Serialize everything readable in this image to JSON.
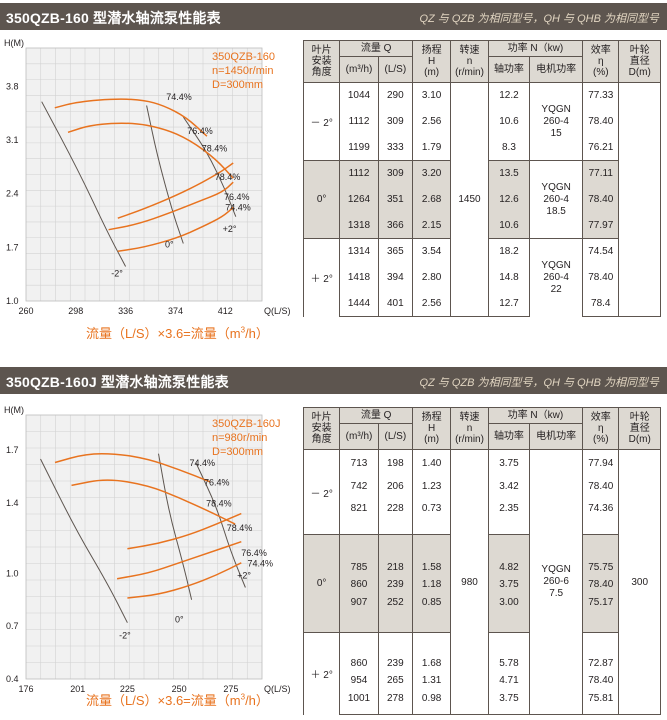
{
  "chart_data": [
    {
      "type": "line",
      "model": "350QZB-160",
      "speed": "n=1450r/min",
      "diameter": "D=300mm",
      "ylabel": "H(M)",
      "xlabel": "Q(L/S)",
      "x_ticks": [
        260,
        298,
        336,
        374,
        412
      ],
      "y_ticks": [
        "1.0",
        "1.7",
        "2.4",
        "3.1",
        "3.8"
      ],
      "xlim": [
        260,
        440
      ],
      "ylim": [
        1.0,
        4.3
      ],
      "x_formula": "流量（L/S）×3.6=流量（m",
      "x_formula_unit_end": "/h）",
      "series": [
        {
          "x": [
            282,
            300,
            330,
            350,
            365,
            382,
            398
          ],
          "y": [
            3.52,
            3.6,
            3.64,
            3.62,
            3.55,
            3.4,
            3.15
          ]
        },
        {
          "x": [
            292,
            310,
            340,
            365,
            385,
            405,
            418
          ],
          "y": [
            3.2,
            3.3,
            3.33,
            3.25,
            3.1,
            2.85,
            2.6
          ]
        },
        {
          "x": [
            330,
            350,
            375,
            395,
            410,
            418
          ],
          "y": [
            2.08,
            2.2,
            2.38,
            2.55,
            2.7,
            2.8
          ]
        },
        {
          "x": [
            323,
            345,
            370,
            392,
            410,
            418
          ],
          "y": [
            1.93,
            2.0,
            2.15,
            2.3,
            2.42,
            2.55
          ]
        },
        {
          "x": [
            330,
            350,
            375,
            395,
            410,
            418
          ],
          "y": [
            1.65,
            1.7,
            1.82,
            1.97,
            2.1,
            2.22
          ]
        }
      ],
      "efficiency_lines": [
        {
          "x": [
            272,
            300,
            322,
            336
          ],
          "y": [
            3.6,
            2.7,
            1.9,
            1.45
          ]
        },
        {
          "x": [
            352,
            360,
            372,
            380
          ],
          "y": [
            3.55,
            2.9,
            2.15,
            1.75
          ]
        },
        {
          "x": [
            380,
            398,
            412,
            420
          ],
          "y": [
            3.4,
            2.95,
            2.45,
            2.1
          ]
        }
      ],
      "labels": [
        {
          "text": "74.4%",
          "x": 367,
          "y": 3.62
        },
        {
          "text": "76.4%",
          "x": 383,
          "y": 3.18
        },
        {
          "text": "78.4%",
          "x": 394,
          "y": 2.95
        },
        {
          "text": "78.4%",
          "x": 404,
          "y": 2.58
        },
        {
          "text": "76.4%",
          "x": 411,
          "y": 2.32
        },
        {
          "text": "74.4%",
          "x": 412,
          "y": 2.18
        },
        {
          "text": "+2°",
          "x": 410,
          "y": 1.9
        },
        {
          "text": "-2°",
          "x": 325,
          "y": 1.32
        },
        {
          "text": "0°",
          "x": 366,
          "y": 1.7
        }
      ]
    },
    {
      "type": "line",
      "model": "350QZB-160J",
      "speed": "n=980r/min",
      "diameter": "D=300mm",
      "ylabel": "H(M)",
      "xlabel": "Q(L/S)",
      "x_ticks": [
        176,
        201,
        225,
        250,
        275
      ],
      "y_ticks": [
        "0.4",
        "0.7",
        "1.0",
        "1.4",
        "1.7"
      ],
      "xlim": [
        176,
        290
      ],
      "ylim": [
        0.4,
        1.9
      ],
      "x_formula": "流量（L/S）×3.6=流量（m",
      "x_formula_unit_end": "/h）",
      "series": [
        {
          "x": [
            190,
            205,
            220,
            235,
            250,
            265
          ],
          "y": [
            1.63,
            1.68,
            1.68,
            1.65,
            1.59,
            1.52
          ]
        },
        {
          "x": [
            198,
            215,
            235,
            250,
            265,
            277
          ],
          "y": [
            1.5,
            1.54,
            1.5,
            1.43,
            1.35,
            1.28
          ]
        },
        {
          "x": [
            225,
            240,
            255,
            268,
            280
          ],
          "y": [
            1.14,
            1.17,
            1.22,
            1.28,
            1.34
          ]
        },
        {
          "x": [
            220,
            235,
            250,
            265,
            280
          ],
          "y": [
            0.97,
            1.0,
            1.06,
            1.12,
            1.18
          ]
        },
        {
          "x": [
            225,
            240,
            255,
            268,
            280
          ],
          "y": [
            0.86,
            0.88,
            0.93,
            0.99,
            1.06
          ]
        }
      ],
      "efficiency_lines": [
        {
          "x": [
            183,
            200,
            215,
            225
          ],
          "y": [
            1.65,
            1.25,
            0.95,
            0.72
          ]
        },
        {
          "x": [
            240,
            245,
            252,
            256
          ],
          "y": [
            1.68,
            1.35,
            1.05,
            0.85
          ]
        },
        {
          "x": [
            258,
            268,
            275,
            282
          ],
          "y": [
            1.63,
            1.38,
            1.12,
            0.92
          ]
        }
      ],
      "labels": [
        {
          "text": "74.4%",
          "x": 255,
          "y": 1.61
        },
        {
          "text": "76.4%",
          "x": 262,
          "y": 1.5
        },
        {
          "text": "78.4%",
          "x": 263,
          "y": 1.38
        },
        {
          "text": "78.4%",
          "x": 273,
          "y": 1.24
        },
        {
          "text": "76.4%",
          "x": 280,
          "y": 1.1
        },
        {
          "text": "74.4%",
          "x": 283,
          "y": 1.04
        },
        {
          "text": "+2°",
          "x": 278,
          "y": 0.97
        },
        {
          "text": "-2°",
          "x": 221,
          "y": 0.63
        },
        {
          "text": "0°",
          "x": 248,
          "y": 0.72
        }
      ]
    }
  ],
  "sections": [
    {
      "title": "350QZB-160 型潜水轴流泵性能表",
      "note": "QZ 与 QZB 为相同型号，QH 与 QHB 为相同型号",
      "table": {
        "headers": {
          "blade": "叶片\n安装\n角度",
          "flow": "流量 Q",
          "flow_m3h": "(m³/h)",
          "flow_ls": "(L/S)",
          "head": "扬程\nH\n(m)",
          "speed": "转速\nn\n(r/min)",
          "power": "功率 N（kw)",
          "shaft_power": "轴功率",
          "motor_power": "电机功率",
          "efficiency": "效率\nη\n(%)",
          "impeller": "叶轮\n直径\nD(m)"
        },
        "speed_value": "1450",
        "impeller_value": "",
        "groups": [
          {
            "angle": "－ 2°",
            "motor": "YQGN\n260-4\n15",
            "rows": [
              {
                "m3h": "1044",
                "ls": "290",
                "h": "3.10",
                "shaft": "12.2",
                "eff": "77.33"
              },
              {
                "m3h": "1112",
                "ls": "309",
                "h": "2.56",
                "shaft": "10.6",
                "eff": "78.40"
              },
              {
                "m3h": "1199",
                "ls": "333",
                "h": "1.79",
                "shaft": "8.3",
                "eff": "76.21"
              }
            ]
          },
          {
            "angle": "0°",
            "motor": "YQGN\n260-4\n18.5",
            "rows": [
              {
                "m3h": "1112",
                "ls": "309",
                "h": "3.20",
                "shaft": "13.5",
                "eff": "77.11"
              },
              {
                "m3h": "1264",
                "ls": "351",
                "h": "2.68",
                "shaft": "12.6",
                "eff": "78.40"
              },
              {
                "m3h": "1318",
                "ls": "366",
                "h": "2.15",
                "shaft": "10.6",
                "eff": "77.97"
              }
            ]
          },
          {
            "angle": "＋ 2°",
            "motor": "YQGN\n260-4\n22",
            "rows": [
              {
                "m3h": "1314",
                "ls": "365",
                "h": "3.54",
                "shaft": "18.2",
                "eff": "74.54"
              },
              {
                "m3h": "1418",
                "ls": "394",
                "h": "2.80",
                "shaft": "14.8",
                "eff": "78.40"
              },
              {
                "m3h": "1444",
                "ls": "401",
                "h": "2.56",
                "shaft": "12.7",
                "eff": "78.4"
              }
            ]
          }
        ]
      }
    },
    {
      "title": "350QZB-160J 型潜水轴流泵性能表",
      "note": "QZ 与 QZB 为相同型号，QH 与 QHB 为相同型号",
      "table": {
        "headers": {
          "blade": "叶片\n安装\n角度",
          "flow": "流量 Q",
          "flow_m3h": "(m³/h)",
          "flow_ls": "(L/S)",
          "head": "扬程\nH\n(m)",
          "speed": "转速\nn\n(r/min)",
          "power": "功率 N（kw)",
          "shaft_power": "轴功率",
          "motor_power": "电机功率",
          "efficiency": "效率\nη\n(%)",
          "impeller": "叶轮\n直径\nD(m)"
        },
        "speed_value": "980",
        "impeller_value": "300",
        "motor_all": "YQGN\n260-6\n7.5",
        "groups": [
          {
            "angle": "－ 2°",
            "rows": [
              {
                "m3h": "713",
                "ls": "198",
                "h": "1.40",
                "shaft": "3.75",
                "eff": "77.94"
              },
              {
                "m3h": "742",
                "ls": "206",
                "h": "1.23",
                "shaft": "3.42",
                "eff": "78.40"
              },
              {
                "m3h": "821",
                "ls": "228",
                "h": "0.73",
                "shaft": "2.35",
                "eff": "74.36"
              }
            ]
          },
          {
            "angle": "0°",
            "rows": [
              {
                "m3h": "785",
                "ls": "218",
                "h": "1.58",
                "shaft": "4.82",
                "eff": "75.75"
              },
              {
                "m3h": "860",
                "ls": "239",
                "h": "1.18",
                "shaft": "3.75",
                "eff": "78.40"
              },
              {
                "m3h": "907",
                "ls": "252",
                "h": "0.85",
                "shaft": "3.00",
                "eff": "75.17"
              }
            ]
          },
          {
            "angle": "＋ 2°",
            "rows": [
              {
                "m3h": "860",
                "ls": "239",
                "h": "1.68",
                "shaft": "5.78",
                "eff": "72.87"
              },
              {
                "m3h": "954",
                "ls": "265",
                "h": "1.31",
                "shaft": "4.71",
                "eff": "78.40"
              },
              {
                "m3h": "1001",
                "ls": "278",
                "h": "0.98",
                "shaft": "3.75",
                "eff": "75.81"
              }
            ]
          }
        ]
      }
    }
  ],
  "colors": {
    "banner": "#5d554f",
    "accent": "#e8731f",
    "band": "#ddd9d2",
    "grid": "#cfcfcf"
  }
}
